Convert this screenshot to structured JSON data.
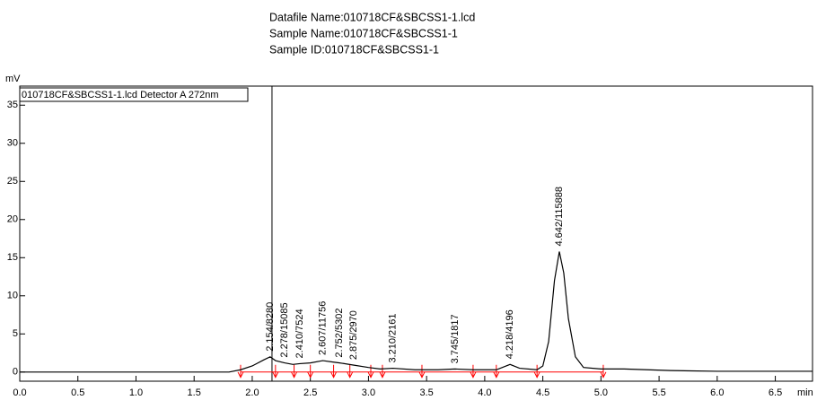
{
  "chart_data": {
    "type": "line",
    "header": [
      "Datafile Name:010718CF&SBCSS1-1.lcd",
      "Sample Name:010718CF&SBCSS1-1",
      "Sample ID:010718CF&SBCSS1-1"
    ],
    "y_label": "mV",
    "x_label": "min",
    "series": [
      {
        "name": "010718CF&SBCSS1-1.lcd Detector A 272nm",
        "color": "#000000",
        "x": [
          0,
          1.8,
          1.9,
          2.0,
          2.1,
          2.154,
          2.2,
          2.278,
          2.35,
          2.41,
          2.5,
          2.607,
          2.7,
          2.752,
          2.875,
          3.0,
          3.1,
          3.21,
          3.4,
          3.6,
          3.745,
          3.9,
          4.1,
          4.218,
          4.3,
          4.45,
          4.5,
          4.55,
          4.6,
          4.642,
          4.68,
          4.72,
          4.78,
          4.85,
          5.0,
          5.2,
          5.6,
          6.0,
          6.82
        ],
        "values": [
          0,
          0,
          0.3,
          0.8,
          1.6,
          2.0,
          1.5,
          1.2,
          1.0,
          1.1,
          1.2,
          1.5,
          1.3,
          1.2,
          0.9,
          0.6,
          0.4,
          0.5,
          0.3,
          0.3,
          0.4,
          0.3,
          0.3,
          1.0,
          0.5,
          0.3,
          0.8,
          4.0,
          12.0,
          15.8,
          13.0,
          7.0,
          2.0,
          0.6,
          0.4,
          0.4,
          0.2,
          0.1,
          0.1
        ]
      }
    ],
    "annotations": [
      {
        "x": 2.154,
        "label": "2.154/8280"
      },
      {
        "x": 2.278,
        "label": "2.278/15085"
      },
      {
        "x": 2.41,
        "label": "2.410/7524"
      },
      {
        "x": 2.607,
        "label": "2.607/11756"
      },
      {
        "x": 2.752,
        "label": "2.752/5302"
      },
      {
        "x": 2.875,
        "label": "2.875/2970"
      },
      {
        "x": 3.21,
        "label": "3.210/2161"
      },
      {
        "x": 3.745,
        "label": "3.745/1817"
      },
      {
        "x": 4.218,
        "label": "4.218/4196"
      },
      {
        "x": 4.642,
        "label": "4.642/115888"
      }
    ],
    "integration_marks": [
      1.9,
      2.2,
      2.36,
      2.5,
      2.7,
      2.84,
      3.02,
      3.12,
      3.46,
      3.9,
      4.1,
      4.45,
      5.02
    ],
    "cursor": 2.17,
    "xlim": [
      0,
      6.82
    ],
    "ylim": [
      -1.2,
      37.5
    ],
    "xticks": [
      {
        "value": 0,
        "label": "0.0"
      },
      0.5,
      {
        "value": 1,
        "label": "1.0"
      },
      1.5,
      {
        "value": 2,
        "label": "2.0"
      },
      2.5,
      {
        "value": 3,
        "label": "3.0"
      },
      3.5,
      {
        "value": 4,
        "label": "4.0"
      },
      4.5,
      {
        "value": 5,
        "label": "5.0"
      },
      5.5,
      {
        "value": 6,
        "label": "6.0"
      },
      6.5
    ],
    "yticks": [
      0,
      5,
      10,
      15,
      20,
      25,
      30,
      35
    ],
    "mark_color": "#ff0000"
  }
}
